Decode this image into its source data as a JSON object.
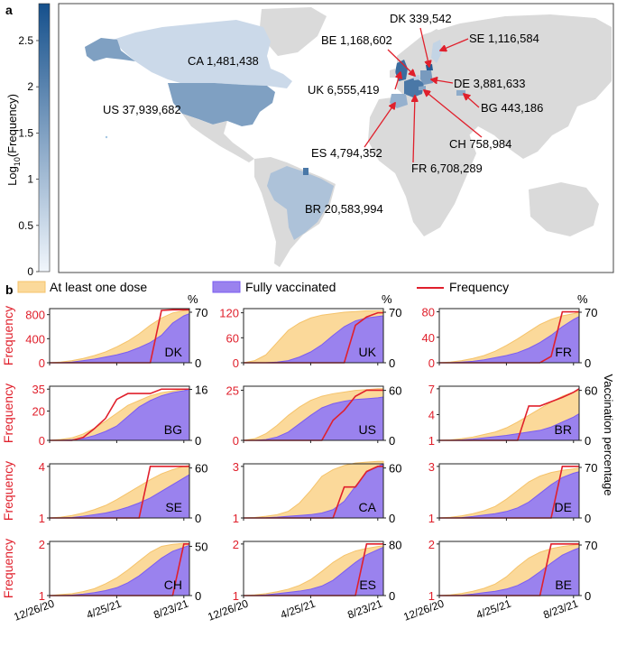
{
  "colors": {
    "land": "#dadada",
    "ocean": "#ffffff",
    "at_least_one_dose": "#f5c36b",
    "at_least_one_dose_fill": "#fbd99a",
    "fully_vaccinated": "#7b5cf0",
    "fully_vaccinated_fill": "#9a82ee",
    "frequency": "#e0202c",
    "arrow": "#e0202c",
    "panel_text_red": "#e0202c"
  },
  "chart_data": [
    {
      "type": "map",
      "panel_label": "a",
      "colorbar": {
        "label_prefix": "Log",
        "label_sub": "10",
        "label_suffix": "(Frequency)",
        "range": [
          0,
          2.9
        ],
        "ticks": [
          "0",
          "0.5",
          "1",
          "1.5",
          "2",
          "2.5"
        ],
        "tick_values": [
          0,
          0.5,
          1,
          1.5,
          2,
          2.5
        ],
        "color_low": "#f1f6fc",
        "color_high": "#15508c"
      },
      "countries": [
        {
          "code": "DK",
          "label": "DK 339,542",
          "log_value": 2.7
        },
        {
          "code": "SE",
          "label": "SE 1,116,584",
          "log_value": 0.6
        },
        {
          "code": "BE",
          "label": "BE 1,168,602",
          "log_value": 0.7
        },
        {
          "code": "CA",
          "label": "CA 1,481,438",
          "log_value": 0.5
        },
        {
          "code": "DE",
          "label": "DE 3,881,633",
          "log_value": 1.6
        },
        {
          "code": "UK",
          "label": "UK 6,555,419",
          "log_value": 2.4
        },
        {
          "code": "US",
          "label": "US 37,939,682",
          "log_value": 1.5
        },
        {
          "code": "BG",
          "label": "BG 443,186",
          "log_value": 1.3
        },
        {
          "code": "CH",
          "label": "CH 758,984",
          "log_value": 1.4
        },
        {
          "code": "ES",
          "label": "ES 4,794,352",
          "log_value": 1.2
        },
        {
          "code": "FR",
          "label": "FR 6,708,289",
          "log_value": 2.2
        },
        {
          "code": "BR",
          "label": "BR 20,583,994",
          "log_value": 0.9
        }
      ]
    },
    {
      "type": "area",
      "panel_label": "b",
      "legend": {
        "at_least_one_dose": "At least one dose",
        "fully_vaccinated": "Fully vaccinated",
        "frequency": "Frequency"
      },
      "percent_unit": "%",
      "left_axis_label": "Frequency",
      "right_axis_label": "Vaccination percentage",
      "x_ticks": [
        "12/26/20",
        "4/25/21",
        "8/23/21"
      ],
      "x_tick_values": [
        0,
        120,
        240
      ],
      "x_range": [
        0,
        250
      ],
      "x": [
        0,
        20,
        40,
        60,
        80,
        100,
        120,
        140,
        160,
        180,
        200,
        220,
        240,
        250
      ],
      "panels": [
        {
          "country": "DK",
          "left_ticks": [
            "0",
            "400",
            "800"
          ],
          "left_tick_values": [
            0,
            400,
            800
          ],
          "left_range": [
            0,
            900
          ],
          "right_ticks": [
            "0",
            "70"
          ],
          "right_tick_values": [
            0,
            70
          ],
          "right_range": [
            0,
            75
          ],
          "frequency": [
            0,
            0,
            0,
            0,
            0,
            0,
            0,
            0,
            0,
            0,
            870,
            880,
            880,
            880
          ],
          "at_least_one_dose": [
            0,
            1,
            3,
            6,
            10,
            15,
            22,
            30,
            40,
            52,
            62,
            69,
            72,
            73
          ],
          "fully_vaccinated": [
            0,
            0,
            1,
            3,
            5,
            8,
            11,
            15,
            21,
            28,
            38,
            55,
            65,
            68
          ]
        },
        {
          "country": "UK",
          "left_ticks": [
            "0",
            "60",
            "120"
          ],
          "left_tick_values": [
            0,
            60,
            120
          ],
          "left_range": [
            0,
            130
          ],
          "right_ticks": [
            "0",
            "70"
          ],
          "right_tick_values": [
            0,
            70
          ],
          "right_range": [
            0,
            75
          ],
          "frequency": [
            0,
            0,
            0,
            0,
            0,
            0,
            0,
            0,
            0,
            0,
            90,
            110,
            120,
            120
          ],
          "at_least_one_dose": [
            0,
            3,
            11,
            28,
            45,
            55,
            62,
            66,
            68,
            70,
            71,
            72,
            72,
            72
          ],
          "fully_vaccinated": [
            0,
            0,
            0,
            1,
            3,
            8,
            15,
            25,
            38,
            50,
            58,
            62,
            64,
            65
          ]
        },
        {
          "country": "FR",
          "left_ticks": [
            "0",
            "40",
            "80"
          ],
          "left_tick_values": [
            0,
            40,
            80
          ],
          "left_range": [
            0,
            85
          ],
          "right_ticks": [
            "0",
            "70"
          ],
          "right_tick_values": [
            0,
            70
          ],
          "right_range": [
            0,
            75
          ],
          "frequency": [
            0,
            0,
            0,
            0,
            0,
            0,
            0,
            0,
            0,
            0,
            10,
            80,
            80,
            80
          ],
          "at_least_one_dose": [
            0,
            1,
            3,
            6,
            10,
            16,
            24,
            33,
            43,
            53,
            60,
            65,
            68,
            70
          ],
          "fully_vaccinated": [
            0,
            0,
            1,
            2,
            4,
            7,
            10,
            14,
            20,
            28,
            38,
            50,
            60,
            64
          ]
        },
        {
          "country": "BG",
          "left_ticks": [
            "0",
            "20",
            "35"
          ],
          "left_tick_values": [
            0,
            20,
            35
          ],
          "left_range": [
            0,
            37
          ],
          "right_ticks": [
            "0",
            "16"
          ],
          "right_tick_values": [
            0,
            16
          ],
          "right_range": [
            0,
            17
          ],
          "frequency": [
            0,
            0,
            0,
            2,
            8,
            15,
            28,
            32,
            32,
            32,
            35,
            35,
            35,
            35
          ],
          "at_least_one_dose": [
            0,
            0.3,
            0.8,
            2,
            3.8,
            6,
            8.5,
            11,
            12.5,
            14,
            15,
            15.5,
            16,
            16
          ],
          "fully_vaccinated": [
            0,
            0,
            0.2,
            0.6,
            1.5,
            2.8,
            4.5,
            7.5,
            10.5,
            12.5,
            14,
            15,
            15.6,
            16
          ]
        },
        {
          "country": "US",
          "left_ticks": [
            "0",
            "25"
          ],
          "left_tick_values": [
            0,
            25
          ],
          "left_range": [
            0,
            27
          ],
          "right_ticks": [
            "0",
            "60"
          ],
          "right_tick_values": [
            0,
            60
          ],
          "right_range": [
            0,
            65
          ],
          "frequency": [
            0,
            0,
            0,
            0,
            0,
            0,
            0,
            0,
            10,
            15,
            22,
            25,
            25,
            25
          ],
          "at_least_one_dose": [
            0,
            2,
            8,
            18,
            30,
            40,
            48,
            53,
            56,
            58,
            60,
            61,
            62,
            62
          ],
          "fully_vaccinated": [
            0,
            0,
            1,
            4,
            10,
            20,
            30,
            39,
            44,
            47,
            49,
            50,
            51,
            52
          ]
        },
        {
          "country": "BR",
          "left_ticks": [
            "1",
            "4",
            "7"
          ],
          "left_tick_values": [
            1,
            4,
            7
          ],
          "left_range": [
            1,
            7.3
          ],
          "right_ticks": [
            "0",
            "60"
          ],
          "right_tick_values": [
            0,
            60
          ],
          "right_range": [
            0,
            65
          ],
          "frequency": [
            1,
            1,
            1,
            1,
            1,
            1,
            1,
            1,
            5,
            5,
            5.5,
            6,
            6.6,
            7
          ],
          "at_least_one_dose": [
            0,
            0.5,
            2,
            4,
            7,
            10,
            15,
            22,
            30,
            38,
            46,
            53,
            58,
            60
          ],
          "fully_vaccinated": [
            0,
            0,
            0.5,
            1.5,
            3,
            4.5,
            6,
            8,
            10,
            12,
            16,
            22,
            28,
            32
          ]
        },
        {
          "country": "SE",
          "left_ticks": [
            "1",
            "4"
          ],
          "left_tick_values": [
            1,
            4
          ],
          "left_range": [
            1,
            4.15
          ],
          "right_ticks": [
            "0",
            "60"
          ],
          "right_tick_values": [
            0,
            60
          ],
          "right_range": [
            0,
            65
          ],
          "frequency": [
            1,
            1,
            1,
            1,
            1,
            1,
            1,
            1,
            1,
            4,
            4,
            4,
            4,
            4
          ],
          "at_least_one_dose": [
            0,
            1,
            3,
            6,
            10,
            15,
            22,
            30,
            38,
            46,
            53,
            58,
            62,
            63
          ],
          "fully_vaccinated": [
            0,
            0,
            0.5,
            2,
            4,
            6,
            9,
            13,
            18,
            24,
            32,
            40,
            48,
            52
          ]
        },
        {
          "country": "CA",
          "left_ticks": [
            "1",
            "3"
          ],
          "left_tick_values": [
            1,
            3
          ],
          "left_range": [
            1,
            3.1
          ],
          "right_ticks": [
            "0",
            "60"
          ],
          "right_tick_values": [
            0,
            60
          ],
          "right_range": [
            0,
            65
          ],
          "frequency": [
            1,
            1,
            1,
            1,
            1,
            1,
            1,
            1,
            1,
            2.2,
            2.2,
            2.8,
            3,
            3
          ],
          "at_least_one_dose": [
            0,
            0.5,
            2,
            4,
            8,
            18,
            33,
            50,
            58,
            63,
            66,
            67,
            68,
            68
          ],
          "fully_vaccinated": [
            0,
            0,
            0.3,
            1,
            2,
            3,
            4,
            6,
            10,
            20,
            38,
            55,
            62,
            65
          ]
        },
        {
          "country": "DE",
          "left_ticks": [
            "1",
            "3"
          ],
          "left_tick_values": [
            1,
            3
          ],
          "left_range": [
            1,
            3.1
          ],
          "right_ticks": [
            "0",
            "70"
          ],
          "right_tick_values": [
            0,
            70
          ],
          "right_range": [
            0,
            75
          ],
          "frequency": [
            1,
            1,
            1,
            1,
            1,
            1,
            1,
            1,
            1,
            1,
            1,
            3,
            3,
            3
          ],
          "at_least_one_dose": [
            0,
            1,
            3,
            6,
            10,
            16,
            26,
            38,
            50,
            58,
            63,
            66,
            68,
            69
          ],
          "fully_vaccinated": [
            0,
            0,
            0.5,
            2,
            4,
            6,
            9,
            14,
            22,
            34,
            46,
            56,
            62,
            64
          ]
        },
        {
          "country": "CH",
          "left_ticks": [
            "1",
            "2"
          ],
          "left_tick_values": [
            1,
            2
          ],
          "left_range": [
            1,
            2.05
          ],
          "right_ticks": [
            "0",
            "50"
          ],
          "right_tick_values": [
            0,
            50
          ],
          "right_range": [
            0,
            55
          ],
          "frequency": [
            1,
            1,
            1,
            1,
            1,
            1,
            1,
            1,
            1,
            1,
            1,
            1,
            2,
            2
          ],
          "at_least_one_dose": [
            0,
            1,
            2,
            4,
            7,
            12,
            18,
            26,
            35,
            44,
            50,
            52,
            53,
            53
          ],
          "fully_vaccinated": [
            0,
            0,
            0.5,
            1.5,
            3,
            5,
            8,
            13,
            20,
            29,
            38,
            45,
            49,
            51
          ]
        },
        {
          "country": "ES",
          "left_ticks": [
            "1",
            "2"
          ],
          "left_tick_values": [
            1,
            2
          ],
          "left_range": [
            1,
            2.05
          ],
          "right_ticks": [
            "0",
            "80"
          ],
          "right_tick_values": [
            0,
            80
          ],
          "right_range": [
            0,
            85
          ],
          "frequency": [
            1,
            1,
            1,
            1,
            1,
            1,
            1,
            1,
            1,
            1,
            1,
            2,
            2,
            2
          ],
          "at_least_one_dose": [
            0,
            1,
            3,
            6,
            10,
            16,
            25,
            38,
            52,
            63,
            70,
            74,
            77,
            78
          ],
          "fully_vaccinated": [
            0,
            0,
            1,
            3,
            5,
            7,
            10,
            15,
            24,
            38,
            52,
            64,
            72,
            76
          ]
        },
        {
          "country": "BE",
          "left_ticks": [
            "1",
            "2"
          ],
          "left_tick_values": [
            1,
            2
          ],
          "left_range": [
            1,
            2.05
          ],
          "right_ticks": [
            "0",
            "70"
          ],
          "right_tick_values": [
            0,
            70
          ],
          "right_range": [
            0,
            75
          ],
          "frequency": [
            1,
            1,
            1,
            1,
            1,
            1,
            1,
            1,
            1,
            1,
            2,
            2,
            2,
            2
          ],
          "at_least_one_dose": [
            0,
            1,
            3,
            6,
            10,
            16,
            26,
            40,
            52,
            60,
            65,
            68,
            70,
            71
          ],
          "fully_vaccinated": [
            0,
            0,
            0.5,
            2,
            4,
            6,
            9,
            14,
            22,
            33,
            45,
            56,
            63,
            66
          ]
        }
      ]
    }
  ]
}
